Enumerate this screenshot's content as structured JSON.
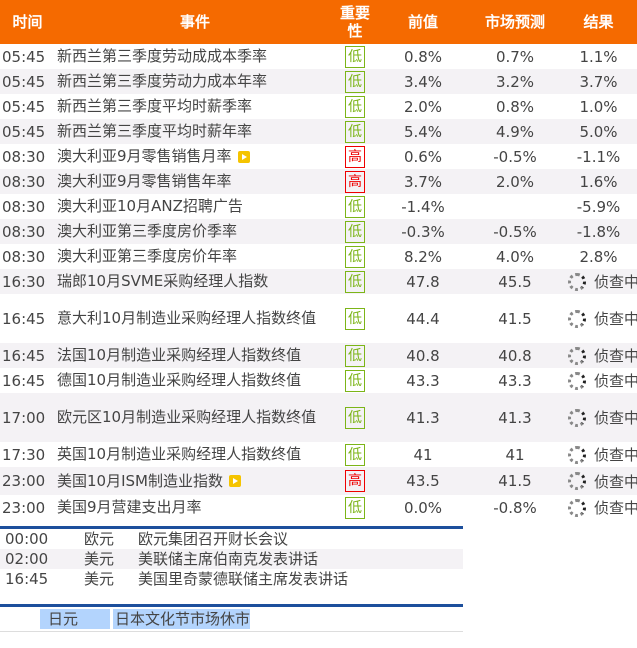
{
  "header": {
    "time": "时间",
    "event": "事件",
    "importance": "重要性",
    "previous": "前值",
    "forecast": "市场预测",
    "result": "结果"
  },
  "events": [
    {
      "time": "05:45",
      "event": "新西兰第三季度劳动成成本季率",
      "importance": "低",
      "previous": "0.8%",
      "forecast": "0.7%",
      "result": "1.1%"
    },
    {
      "time": "05:45",
      "event": "新西兰第三季度劳动力成本年率",
      "importance": "低",
      "previous": "3.4%",
      "forecast": "3.2%",
      "result": "3.7%"
    },
    {
      "time": "05:45",
      "event": "新西兰第三季度平均时薪季率",
      "importance": "低",
      "previous": "2.0%",
      "forecast": "0.8%",
      "result": "1.0%"
    },
    {
      "time": "05:45",
      "event": "新西兰第三季度平均时薪年率",
      "importance": "低",
      "previous": "5.4%",
      "forecast": "4.9%",
      "result": "5.0%"
    },
    {
      "time": "08:30",
      "event": "澳大利亚9月零售销售月率",
      "importance": "高",
      "previous": "0.6%",
      "forecast": "-0.5%",
      "result": "-1.1%",
      "video": true
    },
    {
      "time": "08:30",
      "event": "澳大利亚9月零售销售年率",
      "importance": "高",
      "previous": "3.7%",
      "forecast": "2.0%",
      "result": "1.6%"
    },
    {
      "time": "08:30",
      "event": "澳大利亚10月ANZ招聘广告",
      "importance": "低",
      "previous": "-1.4%",
      "forecast": "",
      "result": "-5.9%"
    },
    {
      "time": "08:30",
      "event": "澳大利亚第三季度房价季率",
      "importance": "低",
      "previous": "-0.3%",
      "forecast": "-0.5%",
      "result": "-1.8%"
    },
    {
      "time": "08:30",
      "event": "澳大利亚第三季度房价年率",
      "importance": "低",
      "previous": "8.2%",
      "forecast": "4.0%",
      "result": "2.8%"
    },
    {
      "time": "16:30",
      "event": "瑞郎10月SVME采购经理人指数",
      "importance": "低",
      "previous": "47.8",
      "forecast": "45.5",
      "result": "侦查中",
      "pending": true
    },
    {
      "time": "16:45",
      "event": "意大利10月制造业采购经理人指数终值",
      "importance": "低",
      "previous": "44.4",
      "forecast": "41.5",
      "result": "侦查中",
      "pending": true,
      "tall": true
    },
    {
      "time": "16:45",
      "event": "法国10月制造业采购经理人指数终值",
      "importance": "低",
      "previous": "40.8",
      "forecast": "40.8",
      "result": "侦查中",
      "pending": true
    },
    {
      "time": "16:45",
      "event": "德国10月制造业采购经理人指数终值",
      "importance": "低",
      "previous": "43.3",
      "forecast": "43.3",
      "result": "侦查中",
      "pending": true
    },
    {
      "time": "17:00",
      "event": "欧元区10月制造业采购经理人指数终值",
      "importance": "低",
      "previous": "41.3",
      "forecast": "41.3",
      "result": "侦查中",
      "pending": true,
      "tall": true
    },
    {
      "time": "17:30",
      "event": "英国10月制造业采购经理人指数终值",
      "importance": "低",
      "previous": "41",
      "forecast": "41",
      "result": "侦查中",
      "pending": true
    },
    {
      "time": "23:00",
      "event": "美国10月ISM制造业指数",
      "importance": "高",
      "previous": "43.5",
      "forecast": "41.5",
      "result": "侦查中",
      "pending": true,
      "video": true
    },
    {
      "time": "23:00",
      "event": "美国9月营建支出月率",
      "importance": "低",
      "previous": "0.0%",
      "forecast": "-0.8%",
      "result": "侦查中",
      "pending": true
    }
  ],
  "speeches": [
    {
      "time": "00:00",
      "currency": "欧元",
      "event": "欧元集团召开财长会议"
    },
    {
      "time": "02:00",
      "currency": "美元",
      "event": "美联储主席伯南克发表讲话"
    },
    {
      "time": "16:45",
      "currency": "美元",
      "event": "美国里奇蒙德联储主席发表讲话"
    }
  ],
  "holidays": [
    {
      "currency": "日元",
      "event": "日本文化节市场休市"
    }
  ],
  "colors": {
    "header": "#f56a00",
    "low": "#7cb518",
    "high": "#e00000",
    "divider": "#1d4f9c"
  }
}
